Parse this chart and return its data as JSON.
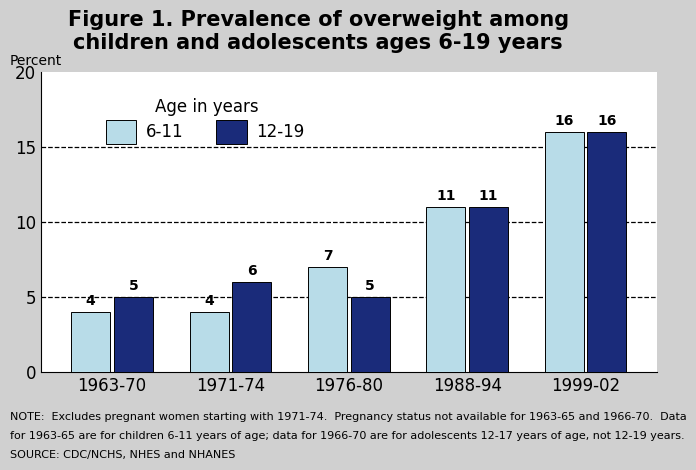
{
  "title": "Figure 1. Prevalence of overweight among\nchildren and adolescents ages 6-19 years",
  "ylabel": "Percent",
  "categories": [
    "1963-70",
    "1971-74",
    "1976-80",
    "1988-94",
    "1999-02"
  ],
  "values_6_11": [
    4,
    4,
    7,
    11,
    16
  ],
  "values_12_19": [
    5,
    6,
    5,
    11,
    16
  ],
  "color_6_11": "#b8dce8",
  "color_12_19": "#1a2b7a",
  "background_color": "#d0d0d0",
  "plot_bg_color": "#ffffff",
  "ylim": [
    0,
    20
  ],
  "yticks": [
    0,
    5,
    10,
    15,
    20
  ],
  "dashed_lines": [
    5,
    10,
    15
  ],
  "legend_title": "Age in years",
  "legend_6_11": "6-11",
  "legend_12_19": "12-19",
  "note_line1": "NOTE:  Excludes pregnant women starting with 1971-74.  Pregnancy status not available for 1963-65 and 1966-70.  Data",
  "note_line2": "for 1963-65 are for children 6-11 years of age; data for 1966-70 are for adolescents 12-17 years of age, not 12-19 years.",
  "note_line3": "SOURCE: CDC/NCHS, NHES and NHANES",
  "title_fontsize": 15,
  "label_fontsize": 10,
  "tick_fontsize": 12,
  "note_fontsize": 8,
  "bar_value_fontsize": 10,
  "legend_title_fontsize": 12,
  "legend_item_fontsize": 12
}
